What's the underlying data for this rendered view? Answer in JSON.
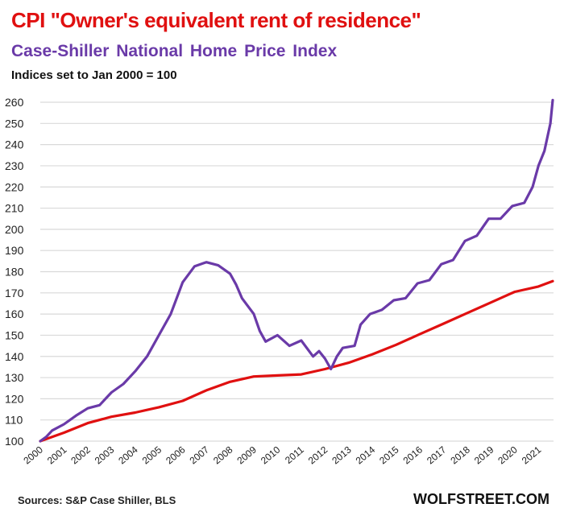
{
  "header": {
    "title_line1": "CPI \"Owner's equivalent rent of residence\"",
    "title_line2": "Case-Shiller  National  Home Price Index",
    "subtitle": "Indices set to Jan 2000 = 100"
  },
  "footer": {
    "sources": "Sources: S&P Case Shiller, BLS",
    "brand": "WOLFSTREET.COM"
  },
  "chart_data": {
    "type": "line",
    "title": "CPI \"Owner's equivalent rent of residence\" vs Case-Shiller National Home Price Index",
    "subtitle": "Indices set to Jan 2000 = 100",
    "xlabel": "",
    "ylabel": "",
    "ylim": [
      100,
      260
    ],
    "xlim": [
      2000,
      2021.6
    ],
    "grid": true,
    "legend": "title-colored (top-left)",
    "y_ticks": [
      100,
      110,
      120,
      130,
      140,
      150,
      160,
      170,
      180,
      190,
      200,
      210,
      220,
      230,
      240,
      250,
      260
    ],
    "x_ticks": [
      "2000",
      "2001",
      "2002",
      "2003",
      "2004",
      "2005",
      "2006",
      "2007",
      "2008",
      "2009",
      "2010",
      "2011",
      "2012",
      "2013",
      "2014",
      "2015",
      "2016",
      "2017",
      "2018",
      "2019",
      "2020",
      "2021"
    ],
    "series": [
      {
        "name": "Case-Shiller National Home Price Index",
        "color": "#6a3aa8",
        "x": [
          2000,
          2000.25,
          2000.5,
          2001,
          2001.5,
          2002,
          2002.5,
          2003,
          2003.5,
          2004,
          2004.5,
          2005,
          2005.5,
          2006,
          2006.5,
          2007,
          2007.5,
          2008,
          2008.25,
          2008.5,
          2009,
          2009.25,
          2009.5,
          2010,
          2010.5,
          2011,
          2011.5,
          2011.75,
          2012,
          2012.25,
          2012.5,
          2012.75,
          2013.25,
          2013.5,
          2013.9,
          2014.4,
          2014.9,
          2015.4,
          2015.9,
          2016.4,
          2016.9,
          2017.4,
          2017.9,
          2018.4,
          2018.9,
          2019.4,
          2019.9,
          2020.4,
          2020.75,
          2021,
          2021.25,
          2021.5,
          2021.6
        ],
        "values": [
          100,
          102,
          105,
          108,
          112,
          115.5,
          117,
          123,
          127,
          133,
          140,
          150,
          160,
          175,
          182.5,
          184.5,
          183,
          179,
          174,
          167.5,
          160,
          152,
          147,
          150,
          145,
          147.5,
          140,
          142.5,
          139,
          134,
          140,
          144,
          145,
          155,
          160,
          162,
          166.5,
          167.5,
          174.5,
          176,
          183.5,
          185.5,
          194.5,
          197,
          205,
          205,
          211,
          212.5,
          220,
          230,
          237,
          250,
          261
        ]
      },
      {
        "name": "CPI Owner's equivalent rent of residence",
        "color": "#e01010",
        "x": [
          2000,
          2001,
          2002,
          2003,
          2004,
          2005,
          2006,
          2007,
          2008,
          2009,
          2010,
          2011,
          2012,
          2013,
          2014,
          2015,
          2016,
          2017,
          2018,
          2019,
          2020,
          2021,
          2021.6
        ],
        "values": [
          100,
          104,
          108.5,
          111.5,
          113.5,
          116,
          119,
          124,
          128,
          130.5,
          131,
          131.5,
          134,
          137,
          141,
          145.5,
          150.5,
          155.5,
          160.5,
          165.5,
          170.5,
          173,
          175.5
        ]
      }
    ]
  }
}
